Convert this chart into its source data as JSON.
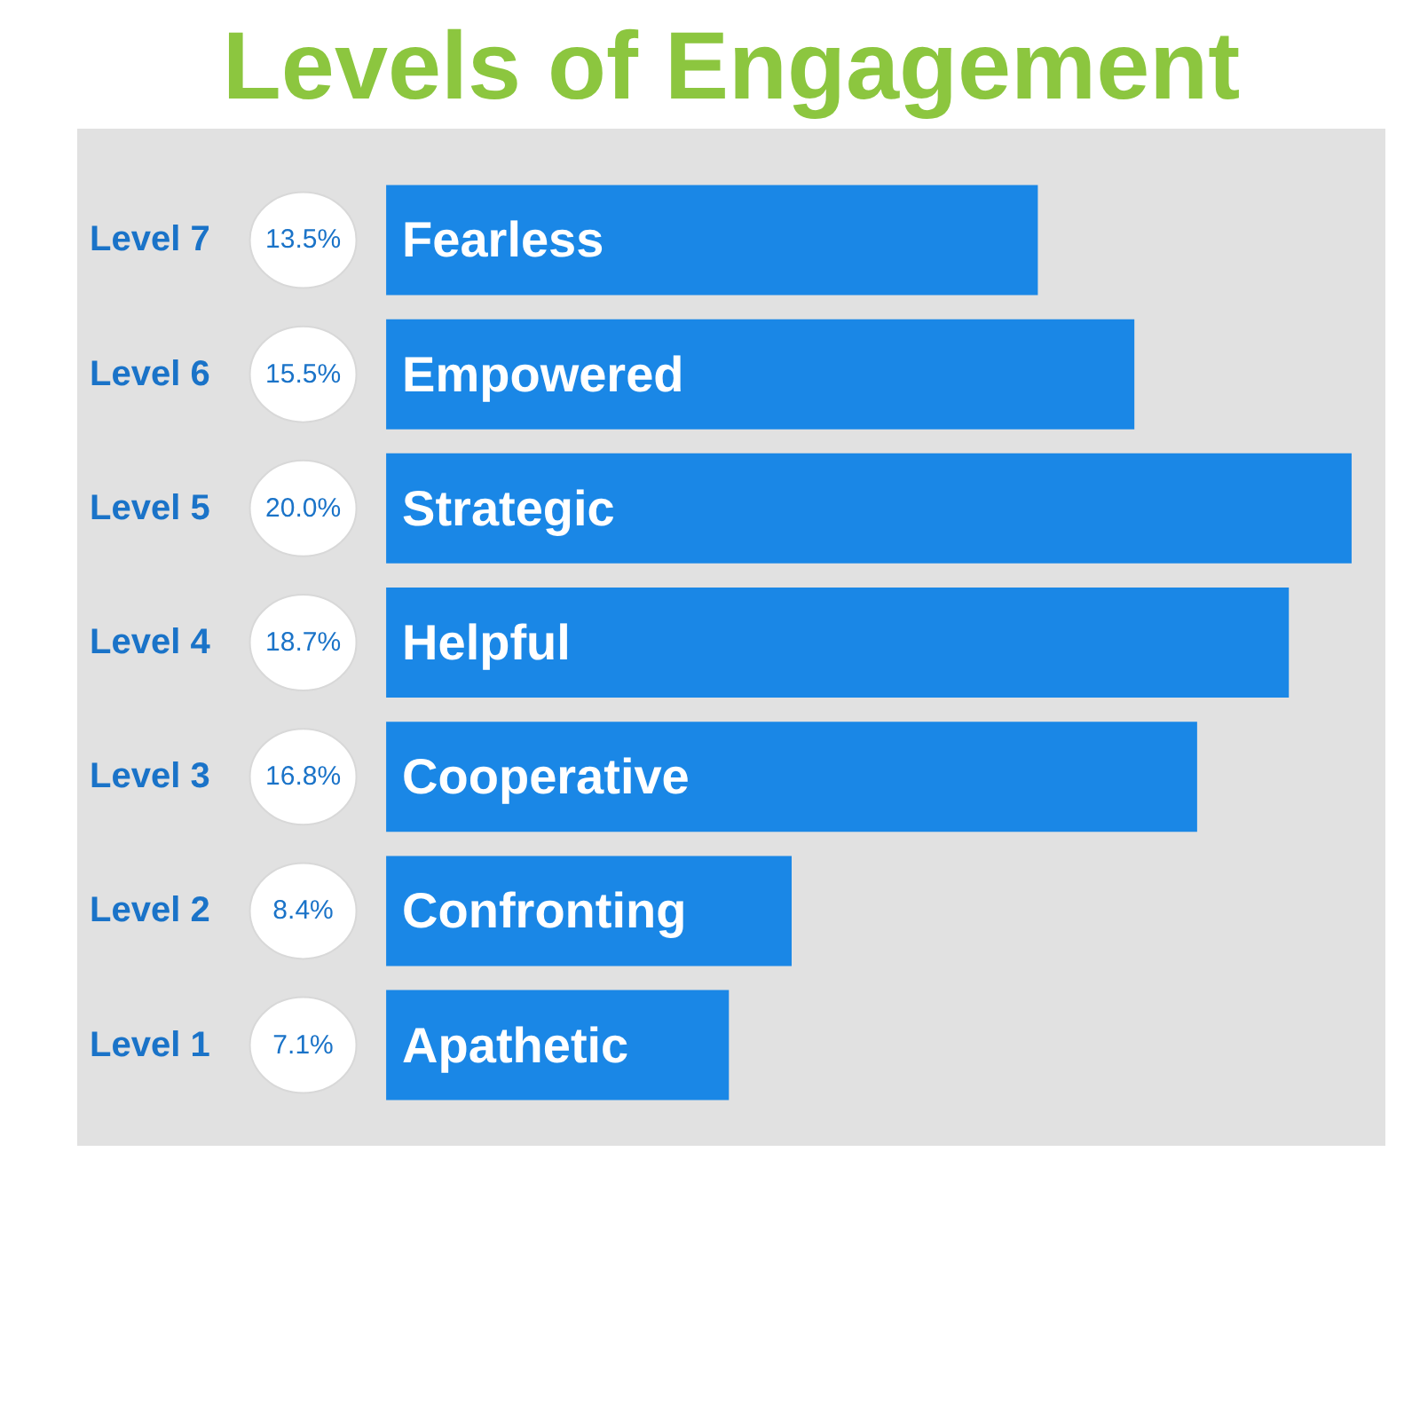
{
  "chart_data": {
    "type": "bar",
    "orientation": "horizontal",
    "title": "Levels of Engagement",
    "categories": [
      "Level 7",
      "Level 6",
      "Level 5",
      "Level 4",
      "Level 3",
      "Level 2",
      "Level 1"
    ],
    "values": [
      13.5,
      15.5,
      20.0,
      18.7,
      16.8,
      8.4,
      7.1
    ],
    "value_labels": [
      "13.5%",
      "15.5%",
      "20.0%",
      "18.7%",
      "16.8%",
      "8.4%",
      "7.1%"
    ],
    "color": "#1a87e6",
    "annotations": [
      "Fearless",
      "Empowered",
      "Strategic",
      "Helpful",
      "Cooperative",
      "Confronting",
      "Apathetic"
    ]
  }
}
